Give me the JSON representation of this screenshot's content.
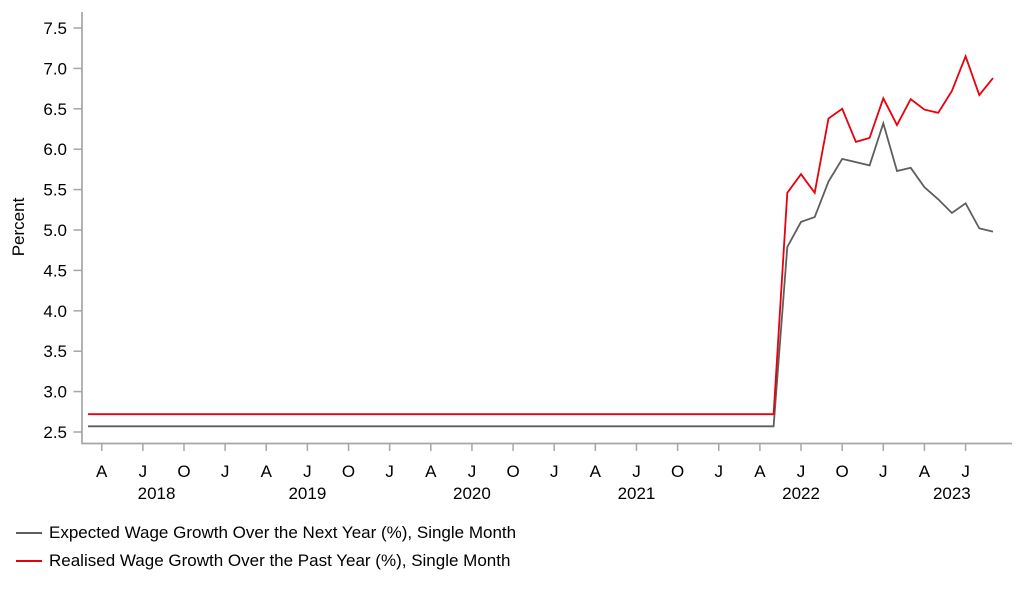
{
  "chart_data": {
    "type": "line",
    "title": "",
    "ylabel": "Percent",
    "ylim": [
      2.5,
      7.5
    ],
    "ytick_labels": [
      "2.5",
      "3.0",
      "3.5",
      "4.0",
      "4.5",
      "5.0",
      "5.5",
      "6.0",
      "6.5",
      "7.0",
      "7.5"
    ],
    "ytick_values": [
      2.5,
      3.0,
      3.5,
      4.0,
      4.5,
      5.0,
      5.5,
      6.0,
      6.5,
      7.0,
      7.5
    ],
    "grid": "off",
    "legend_position": "below-left",
    "axis_color": "#a6a6a6",
    "text_color": "#000000",
    "x": [
      "2018-03",
      "2018-04",
      "2018-05",
      "2018-06",
      "2018-07",
      "2018-08",
      "2018-09",
      "2018-10",
      "2018-11",
      "2018-12",
      "2019-01",
      "2019-02",
      "2019-03",
      "2019-04",
      "2019-05",
      "2019-06",
      "2019-07",
      "2019-08",
      "2019-09",
      "2019-10",
      "2019-11",
      "2019-12",
      "2020-01",
      "2020-02",
      "2020-03",
      "2020-04",
      "2020-05",
      "2020-06",
      "2020-07",
      "2020-08",
      "2020-09",
      "2020-10",
      "2020-11",
      "2020-12",
      "2021-01",
      "2021-02",
      "2021-03",
      "2021-04",
      "2021-05",
      "2021-06",
      "2021-07",
      "2021-08",
      "2021-09",
      "2021-10",
      "2021-11",
      "2021-12",
      "2022-01",
      "2022-02",
      "2022-03",
      "2022-04",
      "2022-05",
      "2022-06",
      "2022-07",
      "2022-08",
      "2022-09",
      "2022-10",
      "2022-11",
      "2022-12",
      "2023-01",
      "2023-02",
      "2023-03",
      "2023-04",
      "2023-05",
      "2023-06",
      "2023-07",
      "2023-08",
      "2023-09"
    ],
    "xtick_month_letters": [
      "A",
      "J",
      "O",
      "J",
      "A",
      "J",
      "O",
      "J",
      "A",
      "J",
      "O",
      "J",
      "A",
      "J",
      "O",
      "J",
      "A",
      "J",
      "O",
      "J",
      "A",
      "J"
    ],
    "xtick_indices": [
      1,
      4,
      7,
      10,
      13,
      16,
      19,
      22,
      25,
      28,
      31,
      34,
      37,
      40,
      43,
      46,
      49,
      52,
      55,
      58,
      61,
      64
    ],
    "year_labels": [
      {
        "text": "2018",
        "index": 5
      },
      {
        "text": "2019",
        "index": 16
      },
      {
        "text": "2020",
        "index": 28
      },
      {
        "text": "2021",
        "index": 40
      },
      {
        "text": "2022",
        "index": 52
      },
      {
        "text": "2023",
        "index": 63
      }
    ],
    "series": [
      {
        "name": "Expected Wage Growth Over the Next Year (%), Single Month",
        "color": "#5e5e5e",
        "values": [
          2.57,
          2.57,
          2.57,
          2.57,
          2.57,
          2.57,
          2.57,
          2.57,
          2.57,
          2.57,
          2.57,
          2.57,
          2.57,
          2.57,
          2.57,
          2.57,
          2.57,
          2.57,
          2.57,
          2.57,
          2.57,
          2.57,
          2.57,
          2.57,
          2.57,
          2.57,
          2.57,
          2.57,
          2.57,
          2.57,
          2.57,
          2.57,
          2.57,
          2.57,
          2.57,
          2.57,
          2.57,
          2.57,
          2.57,
          2.57,
          2.57,
          2.57,
          2.57,
          2.57,
          2.57,
          2.57,
          2.57,
          2.57,
          2.57,
          2.57,
          2.57,
          4.79,
          5.1,
          5.16,
          5.6,
          5.88,
          5.84,
          5.8,
          6.32,
          5.73,
          5.77,
          5.53,
          5.38,
          5.21,
          5.33,
          5.02,
          4.98
        ]
      },
      {
        "name": "Realised Wage Growth Over the Past Year (%), Single Month",
        "color": "#e8000d",
        "values": [
          2.72,
          2.72,
          2.72,
          2.72,
          2.72,
          2.72,
          2.72,
          2.72,
          2.72,
          2.72,
          2.72,
          2.72,
          2.72,
          2.72,
          2.72,
          2.72,
          2.72,
          2.72,
          2.72,
          2.72,
          2.72,
          2.72,
          2.72,
          2.72,
          2.72,
          2.72,
          2.72,
          2.72,
          2.72,
          2.72,
          2.72,
          2.72,
          2.72,
          2.72,
          2.72,
          2.72,
          2.72,
          2.72,
          2.72,
          2.72,
          2.72,
          2.72,
          2.72,
          2.72,
          2.72,
          2.72,
          2.72,
          2.72,
          2.72,
          2.72,
          2.72,
          5.46,
          5.69,
          5.46,
          6.38,
          6.5,
          6.09,
          6.14,
          6.63,
          6.3,
          6.62,
          6.49,
          6.45,
          6.72,
          7.15,
          6.67,
          6.88
        ]
      }
    ]
  },
  "legend": {
    "items": [
      {
        "label": "Expected Wage Growth Over the Next Year (%), Single Month"
      },
      {
        "label": "Realised Wage Growth Over the Past Year (%), Single Month"
      }
    ]
  }
}
